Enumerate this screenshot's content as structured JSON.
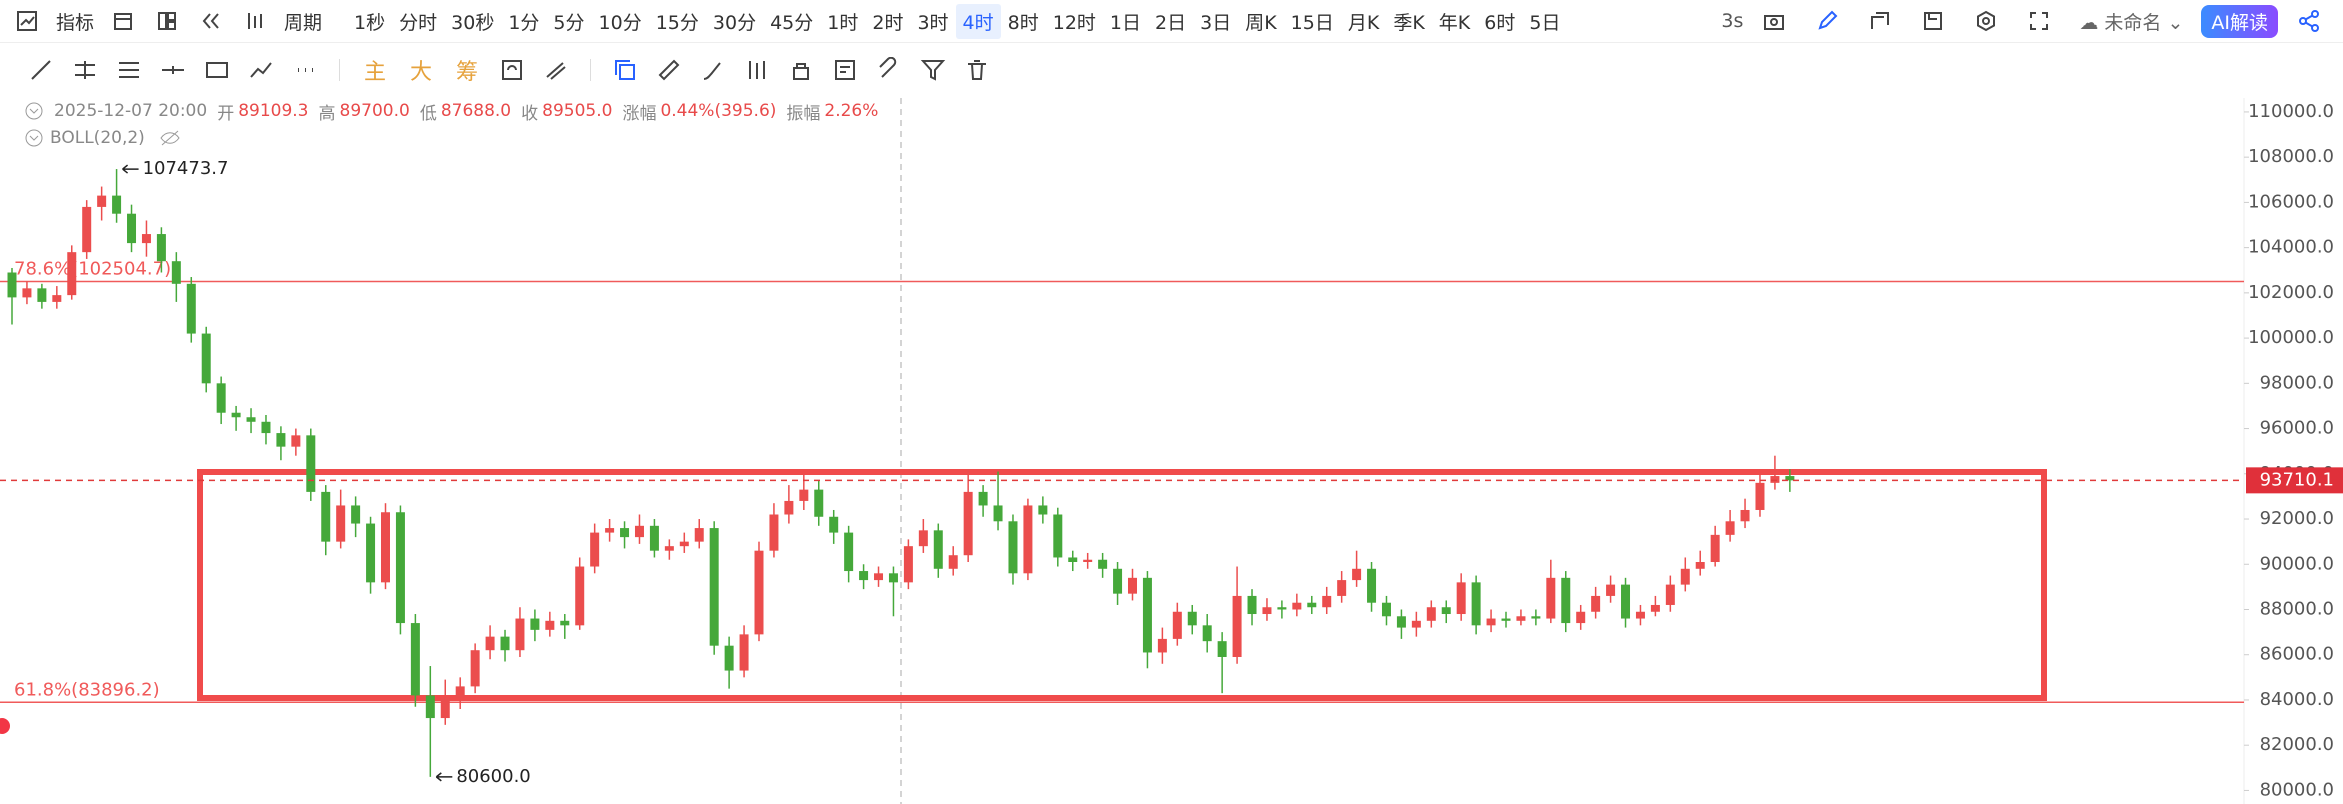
{
  "toolbar": {
    "indicator": "指标",
    "period": "周期",
    "intervals": [
      "1秒",
      "分时",
      "30秒",
      "1分",
      "5分",
      "10分",
      "15分",
      "30分",
      "45分",
      "1时",
      "2时",
      "3时",
      "4时",
      "8时",
      "12时",
      "1日",
      "2日",
      "3日",
      "周K",
      "15日",
      "月K",
      "季K",
      "年K",
      "6时",
      "5日"
    ],
    "active_interval": "4时",
    "refresh": "3s",
    "layout_name": "未命名",
    "ai": "AI解读"
  },
  "drawing_tools": {
    "main": "主",
    "big": "大",
    "chips": "筹"
  },
  "info": {
    "time": "2025-12-07 20:00",
    "fields": [
      {
        "label": "开",
        "value": "89109.3"
      },
      {
        "label": "高",
        "value": "89700.0"
      },
      {
        "label": "低",
        "value": "87688.0"
      },
      {
        "label": "收",
        "value": "89505.0"
      },
      {
        "label": "涨幅",
        "value": "0.44%(395.6)"
      },
      {
        "label": "振幅",
        "value": "2.26%"
      }
    ]
  },
  "indicator": {
    "name": "BOLL(20,2)"
  },
  "chart_data": {
    "type": "candlestick",
    "up_color": "#eb4d4d",
    "down_color": "#45a83a",
    "ylim": [
      79400,
      110660
    ],
    "yticks": [
      {
        "value": 80000,
        "label": "80000.0"
      },
      {
        "value": 82000,
        "label": "82000.0"
      },
      {
        "value": 84000,
        "label": "84000.0"
      },
      {
        "value": 86000,
        "label": "86000.0"
      },
      {
        "value": 88000,
        "label": "88000.0"
      },
      {
        "value": 90000,
        "label": "90000.0"
      },
      {
        "value": 92000,
        "label": "92000.0"
      },
      {
        "value": 94000,
        "label": "94000.0"
      },
      {
        "value": 96000,
        "label": "96000.0"
      },
      {
        "value": 98000,
        "label": "98000.0"
      },
      {
        "value": 100000,
        "label": "100000.0"
      },
      {
        "value": 102000,
        "label": "102000.0"
      },
      {
        "value": 104000,
        "label": "104000.0"
      },
      {
        "value": 106000,
        "label": "106000.0"
      },
      {
        "value": 108000,
        "label": "108000.0"
      },
      {
        "value": 110000,
        "label": "110000.0"
      }
    ],
    "levels": [
      {
        "value": 102504.7,
        "label": "78.6%(102504.7)"
      },
      {
        "value": 83896.2,
        "label": "61.8%(83896.2)"
      }
    ],
    "last_price": 93710.1,
    "max_label": 107473.7,
    "min_label": {
      "value": 80600,
      "label": "80600.0"
    },
    "ohlc": [
      [
        102900,
        103100,
        100600,
        101800
      ],
      [
        101800,
        102500,
        101500,
        102200
      ],
      [
        102200,
        102400,
        101300,
        101600
      ],
      [
        101600,
        102300,
        101300,
        101900
      ],
      [
        101900,
        104100,
        101700,
        103800
      ],
      [
        103800,
        106100,
        103500,
        105800
      ],
      [
        105800,
        106700,
        105200,
        106300
      ],
      [
        106300,
        107473.7,
        105100,
        105500
      ],
      [
        105500,
        105900,
        103800,
        104200
      ],
      [
        104200,
        105200,
        103600,
        104600
      ],
      [
        104600,
        104900,
        102900,
        103400
      ],
      [
        103400,
        103800,
        101600,
        102400
      ],
      [
        102400,
        102700,
        99800,
        100200
      ],
      [
        100200,
        100500,
        97600,
        98000
      ],
      [
        98000,
        98300,
        96200,
        96700
      ],
      [
        96700,
        97000,
        95900,
        96500
      ],
      [
        96500,
        96900,
        95800,
        96300
      ],
      [
        96300,
        96600,
        95300,
        95800
      ],
      [
        95800,
        96100,
        94600,
        95200
      ],
      [
        95200,
        96000,
        94800,
        95700
      ],
      [
        95700,
        96000,
        92800,
        93200
      ],
      [
        93200,
        93500,
        90400,
        91000
      ],
      [
        91000,
        93300,
        90700,
        92600
      ],
      [
        92600,
        93000,
        91200,
        91800
      ],
      [
        91800,
        92100,
        88700,
        89200
      ],
      [
        89200,
        92700,
        88900,
        92300
      ],
      [
        92300,
        92600,
        86900,
        87400
      ],
      [
        87400,
        87800,
        83700,
        84200
      ],
      [
        84200,
        85500,
        80600,
        83200
      ],
      [
        83200,
        84900,
        82900,
        84100
      ],
      [
        84100,
        85000,
        83600,
        84600
      ],
      [
        84600,
        86500,
        84300,
        86200
      ],
      [
        86200,
        87300,
        85800,
        86800
      ],
      [
        86800,
        87100,
        85700,
        86200
      ],
      [
        86200,
        88100,
        85900,
        87600
      ],
      [
        87600,
        88000,
        86600,
        87100
      ],
      [
        87100,
        87900,
        86800,
        87500
      ],
      [
        87500,
        87800,
        86700,
        87300
      ],
      [
        87300,
        90300,
        87100,
        89900
      ],
      [
        89900,
        91800,
        89600,
        91400
      ],
      [
        91400,
        92000,
        91000,
        91600
      ],
      [
        91600,
        91900,
        90700,
        91200
      ],
      [
        91200,
        92200,
        90900,
        91700
      ],
      [
        91700,
        92000,
        90300,
        90600
      ],
      [
        90600,
        91100,
        90200,
        90800
      ],
      [
        90800,
        91400,
        90500,
        91000
      ],
      [
        91000,
        92000,
        90700,
        91600
      ],
      [
        91600,
        91900,
        86000,
        86400
      ],
      [
        86400,
        86800,
        84500,
        85300
      ],
      [
        85300,
        87300,
        85000,
        86900
      ],
      [
        86900,
        91000,
        86600,
        90600
      ],
      [
        90600,
        92700,
        90300,
        92200
      ],
      [
        92200,
        93500,
        91800,
        92800
      ],
      [
        92800,
        94000,
        92400,
        93300
      ],
      [
        93300,
        93700,
        91700,
        92100
      ],
      [
        92100,
        92400,
        90900,
        91400
      ],
      [
        91400,
        91700,
        89200,
        89700
      ],
      [
        89700,
        90000,
        88900,
        89300
      ],
      [
        89300,
        89900,
        89000,
        89600
      ],
      [
        89600,
        89900,
        87700,
        89200
      ],
      [
        89200,
        91100,
        88900,
        90800
      ],
      [
        90800,
        92000,
        90500,
        91500
      ],
      [
        91500,
        91800,
        89400,
        89800
      ],
      [
        89800,
        90800,
        89500,
        90400
      ],
      [
        90400,
        94200,
        90100,
        93200
      ],
      [
        93200,
        93500,
        92100,
        92600
      ],
      [
        92600,
        94100,
        91500,
        91900
      ],
      [
        91900,
        92200,
        89100,
        89600
      ],
      [
        89600,
        92900,
        89300,
        92600
      ],
      [
        92600,
        93000,
        91800,
        92200
      ],
      [
        92200,
        92500,
        89900,
        90300
      ],
      [
        90300,
        90600,
        89700,
        90100
      ],
      [
        90100,
        90500,
        89800,
        90200
      ],
      [
        90200,
        90500,
        89400,
        89800
      ],
      [
        89800,
        90100,
        88200,
        88700
      ],
      [
        88700,
        89800,
        88400,
        89400
      ],
      [
        89400,
        89700,
        85400,
        86100
      ],
      [
        86100,
        87200,
        85600,
        86700
      ],
      [
        86700,
        88300,
        86400,
        87900
      ],
      [
        87900,
        88200,
        86900,
        87300
      ],
      [
        87300,
        87800,
        86100,
        86600
      ],
      [
        86600,
        87000,
        84300,
        85900
      ],
      [
        85900,
        89900,
        85600,
        88600
      ],
      [
        88600,
        88900,
        87300,
        87800
      ],
      [
        87800,
        88500,
        87500,
        88100
      ],
      [
        88100,
        88400,
        87600,
        88000
      ],
      [
        88000,
        88700,
        87700,
        88300
      ],
      [
        88300,
        88600,
        87800,
        88100
      ],
      [
        88100,
        89000,
        87800,
        88600
      ],
      [
        88600,
        89700,
        88300,
        89300
      ],
      [
        89300,
        90600,
        89000,
        89800
      ],
      [
        89800,
        90100,
        87900,
        88300
      ],
      [
        88300,
        88600,
        87300,
        87700
      ],
      [
        87700,
        88000,
        86700,
        87200
      ],
      [
        87200,
        87900,
        86800,
        87500
      ],
      [
        87500,
        88400,
        87200,
        88100
      ],
      [
        88100,
        88400,
        87400,
        87800
      ],
      [
        87800,
        89600,
        87500,
        89200
      ],
      [
        89200,
        89500,
        86900,
        87300
      ],
      [
        87300,
        88000,
        87000,
        87600
      ],
      [
        87600,
        87900,
        87200,
        87500
      ],
      [
        87500,
        88000,
        87300,
        87700
      ],
      [
        87700,
        88000,
        87300,
        87600
      ],
      [
        87600,
        90200,
        87400,
        89400
      ],
      [
        89400,
        89700,
        87000,
        87400
      ],
      [
        87400,
        88200,
        87100,
        87900
      ],
      [
        87900,
        89000,
        87600,
        88600
      ],
      [
        88600,
        89500,
        88300,
        89100
      ],
      [
        89100,
        89400,
        87200,
        87600
      ],
      [
        87600,
        88200,
        87300,
        87900
      ],
      [
        87900,
        88600,
        87700,
        88200
      ],
      [
        88200,
        89500,
        87900,
        89100
      ],
      [
        89100,
        90300,
        88800,
        89800
      ],
      [
        89800,
        90600,
        89500,
        90100
      ],
      [
        90100,
        91700,
        89900,
        91300
      ],
      [
        91300,
        92400,
        91000,
        91900
      ],
      [
        91900,
        92900,
        91600,
        92400
      ],
      [
        92400,
        94000,
        92100,
        93600
      ],
      [
        93600,
        94800,
        93300,
        93900
      ],
      [
        93900,
        94200,
        93200,
        93710.1
      ]
    ]
  }
}
